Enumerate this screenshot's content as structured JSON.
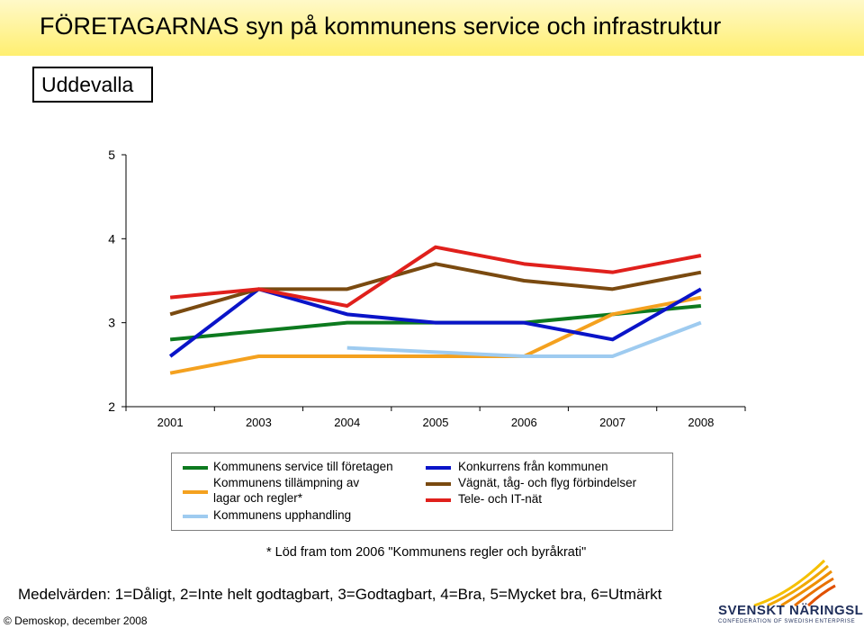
{
  "page": {
    "title": "FÖRETAGARNAS syn på kommunens service och infrastruktur",
    "subtitle": "Uddevalla",
    "footnote": "* Löd fram tom 2006 \"Kommunens regler och byråkrati\"",
    "scale_note": "Medelvärden: 1=Dåligt, 2=Inte helt godtagbart, 3=Godtagbart, 4=Bra, 5=Mycket bra, 6=Utmärkt",
    "copyright": "© Demoskop, december 2008",
    "logo": {
      "name": "SVENSKT NÄRINGSLIV",
      "tagline": "CONFEDERATION OF SWEDISH ENTERPRISE"
    },
    "title_band_color": "#ffef70"
  },
  "chart_data": {
    "type": "line",
    "title": "",
    "xlabel": "",
    "ylabel": "",
    "categories": [
      "2001",
      "2003",
      "2004",
      "2005",
      "2006",
      "2007",
      "2008"
    ],
    "ylim": [
      2,
      5
    ],
    "yticks": [
      "2",
      "3",
      "4",
      "5"
    ],
    "grid": false,
    "legend_position": "bottom",
    "series": [
      {
        "name": "Kommunens service till företagen",
        "color": "#0d7a1f",
        "values": [
          2.8,
          2.9,
          3.0,
          3.0,
          3.0,
          3.1,
          3.2
        ]
      },
      {
        "name": "Kommunens tillämpning av\nlagar och regler*",
        "color": "#f4a11f",
        "values": [
          2.4,
          2.6,
          2.6,
          2.6,
          2.6,
          3.1,
          3.3
        ]
      },
      {
        "name": "Kommunens upphandling",
        "color": "#9ecbf0",
        "values": [
          null,
          null,
          2.7,
          2.65,
          2.6,
          2.6,
          3.0
        ]
      },
      {
        "name": "Konkurrens från kommunen",
        "color": "#0a14c8",
        "values": [
          2.6,
          3.4,
          3.1,
          3.0,
          3.0,
          2.8,
          3.4
        ]
      },
      {
        "name": "Vägnät, tåg- och flyg förbindelser",
        "color": "#7a4a10",
        "values": [
          3.1,
          3.4,
          3.4,
          3.7,
          3.5,
          3.4,
          3.6
        ]
      },
      {
        "name": "Tele- och IT-nät",
        "color": "#e0201c",
        "values": [
          3.3,
          3.4,
          3.2,
          3.9,
          3.7,
          3.6,
          3.8
        ]
      }
    ]
  }
}
